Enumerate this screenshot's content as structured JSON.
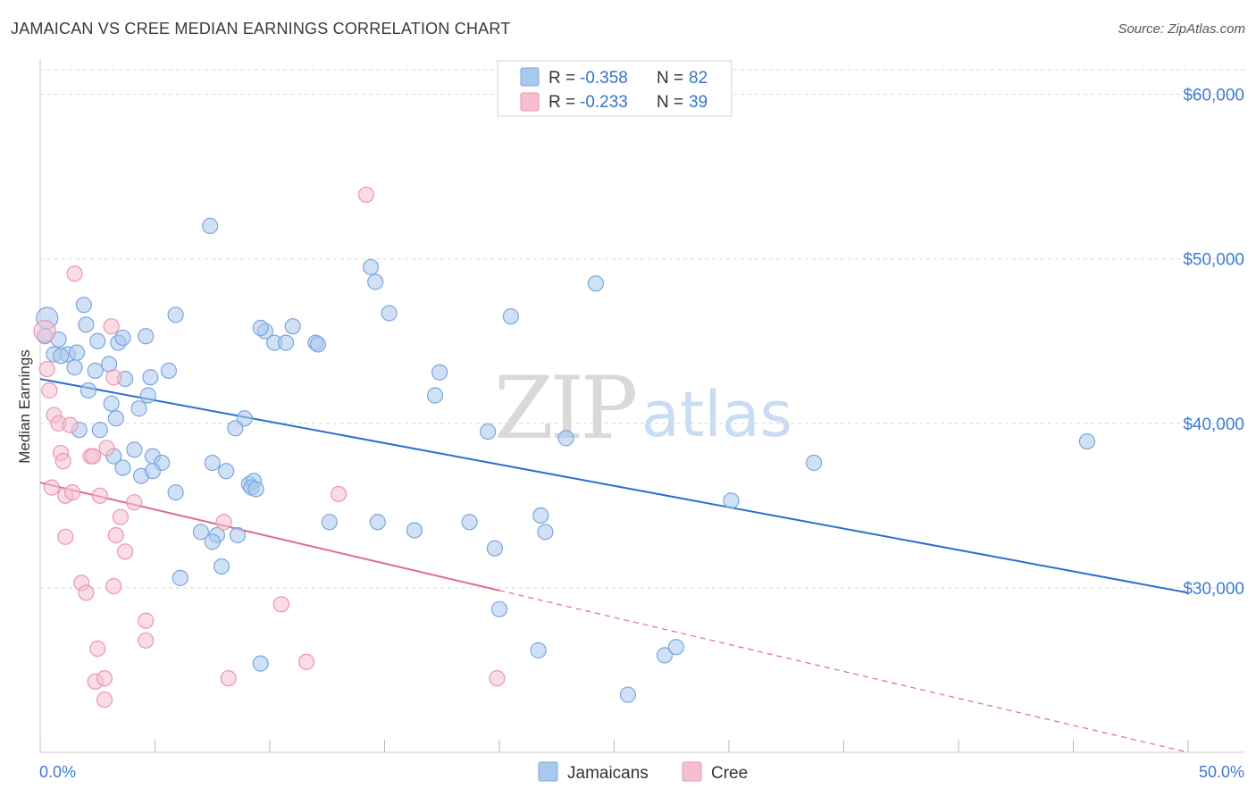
{
  "title": "JAMAICAN VS CREE MEDIAN EARNINGS CORRELATION CHART",
  "source": "Source: ZipAtlas.com",
  "watermark": {
    "zip": "ZIP",
    "atlas": "atlas"
  },
  "legend": {
    "rows": [
      {
        "r_label": "R = ",
        "r_value": "-0.358",
        "n_label": "N = ",
        "n_value": "82"
      },
      {
        "r_label": "R = ",
        "r_value": "-0.233",
        "n_label": "N = ",
        "n_value": "39"
      }
    ]
  },
  "bottom_legend": {
    "jamaicans": "Jamaicans",
    "cree": "Cree"
  },
  "colors": {
    "jamaicans_fill": "#a9c8ef",
    "jamaicans_stroke": "#7ba6de",
    "jamaicans_line": "#2a6fce",
    "cree_fill": "#f6bfd0",
    "cree_stroke": "#ec95b2",
    "cree_line": "#e06a96",
    "grid": "#d8d8d8",
    "axis_text": "#3d7bd0"
  },
  "chart_data": {
    "type": "scatter",
    "title": "JAMAICAN VS CREE MEDIAN EARNINGS CORRELATION CHART",
    "xlabel": "",
    "ylabel": "Median Earnings",
    "xlim": [
      0,
      50
    ],
    "ylim": [
      20000,
      61500
    ],
    "x_tick_labels": [
      "0.0%",
      "50.0%"
    ],
    "y_ticks": [
      30000,
      40000,
      50000,
      60000
    ],
    "y_tick_labels": [
      "$30,000",
      "$40,000",
      "$50,000",
      "$60,000"
    ],
    "grid": true,
    "legend_position": "top-center",
    "series": [
      {
        "name": "Jamaicans",
        "r": -0.358,
        "n": 82,
        "trend": {
          "x": [
            0,
            50
          ],
          "y": [
            42700,
            29700
          ],
          "solid_until": 50
        },
        "points": [
          [
            0.3,
            46400
          ],
          [
            0.2,
            45300
          ],
          [
            0.8,
            45100
          ],
          [
            0.6,
            44200
          ],
          [
            1.2,
            44200
          ],
          [
            1.6,
            44300
          ],
          [
            0.9,
            44100
          ],
          [
            1.5,
            43400
          ],
          [
            1.9,
            47200
          ],
          [
            2.0,
            46000
          ],
          [
            2.5,
            45000
          ],
          [
            3.4,
            44900
          ],
          [
            3.6,
            45200
          ],
          [
            4.6,
            45300
          ],
          [
            5.9,
            46600
          ],
          [
            2.4,
            43200
          ],
          [
            3.0,
            43600
          ],
          [
            3.7,
            42700
          ],
          [
            4.8,
            42800
          ],
          [
            5.6,
            43200
          ],
          [
            4.7,
            41700
          ],
          [
            2.1,
            42000
          ],
          [
            3.1,
            41200
          ],
          [
            4.3,
            40900
          ],
          [
            3.3,
            40300
          ],
          [
            2.6,
            39600
          ],
          [
            1.7,
            39600
          ],
          [
            4.1,
            38400
          ],
          [
            4.9,
            38000
          ],
          [
            3.2,
            38000
          ],
          [
            3.6,
            37300
          ],
          [
            5.3,
            37600
          ],
          [
            4.4,
            36800
          ],
          [
            4.9,
            37100
          ],
          [
            5.9,
            35800
          ],
          [
            7.5,
            37600
          ],
          [
            8.1,
            37100
          ],
          [
            8.9,
            40300
          ],
          [
            8.5,
            39700
          ],
          [
            9.1,
            36300
          ],
          [
            9.3,
            36500
          ],
          [
            9.2,
            36100
          ],
          [
            7.0,
            33400
          ],
          [
            7.7,
            33200
          ],
          [
            9.4,
            36000
          ],
          [
            7.9,
            31300
          ],
          [
            8.6,
            33200
          ],
          [
            9.8,
            45600
          ],
          [
            10.2,
            44900
          ],
          [
            9.6,
            45800
          ],
          [
            10.7,
            44900
          ],
          [
            11.0,
            45900
          ],
          [
            12.0,
            44900
          ],
          [
            12.1,
            44800
          ],
          [
            12.6,
            34000
          ],
          [
            14.7,
            34000
          ],
          [
            14.4,
            49500
          ],
          [
            14.6,
            48600
          ],
          [
            15.2,
            46700
          ],
          [
            16.3,
            33500
          ],
          [
            17.4,
            43100
          ],
          [
            17.2,
            41700
          ],
          [
            18.7,
            34000
          ],
          [
            19.8,
            32400
          ],
          [
            20.0,
            28700
          ],
          [
            19.5,
            39500
          ],
          [
            20.5,
            46500
          ],
          [
            21.8,
            34400
          ],
          [
            22.0,
            33400
          ],
          [
            22.9,
            39100
          ],
          [
            24.2,
            48500
          ],
          [
            27.2,
            25900
          ],
          [
            27.7,
            26400
          ],
          [
            30.1,
            35300
          ],
          [
            33.7,
            37600
          ],
          [
            45.6,
            38900
          ],
          [
            25.6,
            23500
          ],
          [
            21.7,
            26200
          ],
          [
            6.1,
            30600
          ],
          [
            7.5,
            32800
          ],
          [
            9.6,
            25400
          ],
          [
            7.4,
            52000
          ]
        ]
      },
      {
        "name": "Cree",
        "r": -0.233,
        "n": 39,
        "trend": {
          "x": [
            0,
            50
          ],
          "y": [
            36400,
            20000
          ],
          "solid_until": 20
        },
        "points": [
          [
            0.2,
            45600
          ],
          [
            0.3,
            43300
          ],
          [
            0.4,
            42000
          ],
          [
            0.6,
            40500
          ],
          [
            0.8,
            40000
          ],
          [
            0.9,
            38200
          ],
          [
            1.0,
            37700
          ],
          [
            0.5,
            36100
          ],
          [
            1.1,
            35600
          ],
          [
            1.3,
            39900
          ],
          [
            2.2,
            38000
          ],
          [
            2.3,
            38000
          ],
          [
            1.4,
            35800
          ],
          [
            2.6,
            35600
          ],
          [
            2.9,
            38500
          ],
          [
            3.5,
            34300
          ],
          [
            4.1,
            35200
          ],
          [
            3.3,
            33200
          ],
          [
            3.7,
            32200
          ],
          [
            1.1,
            33100
          ],
          [
            1.8,
            30300
          ],
          [
            2.0,
            29700
          ],
          [
            3.2,
            30100
          ],
          [
            4.6,
            28000
          ],
          [
            4.6,
            26800
          ],
          [
            2.5,
            26300
          ],
          [
            2.4,
            24300
          ],
          [
            2.8,
            24500
          ],
          [
            2.8,
            23200
          ],
          [
            8.0,
            34000
          ],
          [
            8.2,
            24500
          ],
          [
            10.5,
            29000
          ],
          [
            11.6,
            25500
          ],
          [
            13.0,
            35700
          ],
          [
            14.2,
            53900
          ],
          [
            19.9,
            24500
          ],
          [
            1.5,
            49100
          ],
          [
            3.1,
            45900
          ],
          [
            3.2,
            42800
          ]
        ]
      }
    ]
  }
}
